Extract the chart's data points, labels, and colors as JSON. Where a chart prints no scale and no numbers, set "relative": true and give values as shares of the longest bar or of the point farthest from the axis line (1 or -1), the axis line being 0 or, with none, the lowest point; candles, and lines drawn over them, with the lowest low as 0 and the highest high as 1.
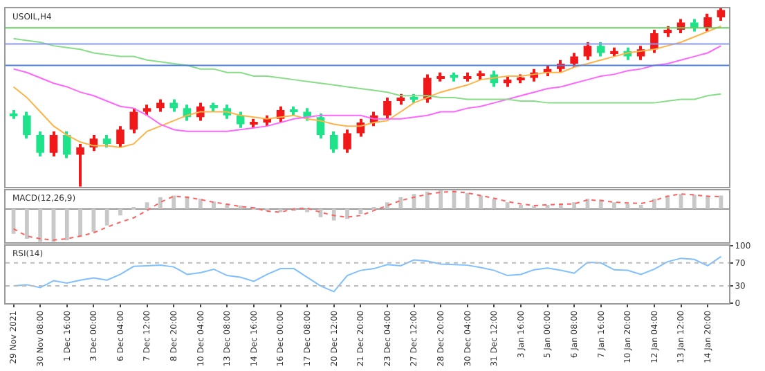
{
  "chart_data": [
    {
      "type": "candlestick",
      "title": "USOIL,H4",
      "relative": true,
      "categories": [
        null,
        null,
        null,
        null,
        null,
        null,
        null,
        null,
        null,
        null,
        null,
        null,
        null,
        null,
        null,
        null,
        null,
        null,
        null,
        null,
        null,
        null,
        null,
        null,
        null,
        null,
        null,
        null,
        null,
        null,
        null,
        null,
        null,
        null,
        null,
        null,
        null,
        null,
        null,
        null,
        null,
        null,
        null,
        null,
        null,
        null,
        null,
        null,
        null,
        null,
        null,
        null,
        null,
        null
      ],
      "colors": [
        "#1ee38a",
        "#1ee38a",
        "#1ee38a",
        "#f01818",
        "#1ee38a",
        "#f01818",
        "#f01818",
        "#1ee38a",
        "#f01818",
        "#f01818",
        "#f01818",
        "#f01818",
        "#1ee38a",
        "#1ee38a",
        "#f01818",
        "#1ee38a",
        "#1ee38a",
        "#1ee38a",
        "#f01818",
        "#f01818",
        "#f01818",
        "#1ee38a",
        "#1ee38a",
        "#1ee38a",
        "#1ee38a",
        "#f01818",
        "#f01818",
        "#f01818",
        "#f01818",
        "#f01818",
        "#1ee38a",
        "#f01818",
        "#f01818",
        "#1ee38a",
        "#f01818",
        "#f01818",
        "#1ee38a",
        "#f01818",
        "#f01818",
        "#f01818",
        "#f01818",
        "#f01818",
        "#f01818",
        "#f01818",
        "#1ee38a",
        "#f01818",
        "#1ee38a",
        "#f01818",
        "#f01818",
        "#f01818",
        "#f01818",
        "#1ee38a",
        "#f01818",
        "#f01818"
      ],
      "ohlc": [
        [
          0.41,
          0.43,
          0.38,
          0.4
        ],
        [
          0.4,
          0.42,
          0.27,
          0.29
        ],
        [
          0.29,
          0.31,
          0.17,
          0.19
        ],
        [
          0.19,
          0.31,
          0.17,
          0.29
        ],
        [
          0.29,
          0.31,
          0.16,
          0.18
        ],
        [
          0.18,
          0.24,
          0.0,
          0.22
        ],
        [
          0.22,
          0.29,
          0.2,
          0.27
        ],
        [
          0.27,
          0.29,
          0.22,
          0.24
        ],
        [
          0.24,
          0.34,
          0.22,
          0.32
        ],
        [
          0.32,
          0.44,
          0.3,
          0.42
        ],
        [
          0.42,
          0.46,
          0.4,
          0.44
        ],
        [
          0.44,
          0.49,
          0.42,
          0.47
        ],
        [
          0.47,
          0.49,
          0.42,
          0.44
        ],
        [
          0.44,
          0.46,
          0.37,
          0.39
        ],
        [
          0.39,
          0.47,
          0.37,
          0.45
        ],
        [
          0.45,
          0.47,
          0.42,
          0.44
        ],
        [
          0.44,
          0.46,
          0.38,
          0.4
        ],
        [
          0.4,
          0.42,
          0.33,
          0.35
        ],
        [
          0.35,
          0.38,
          0.33,
          0.36
        ],
        [
          0.36,
          0.4,
          0.34,
          0.38
        ],
        [
          0.38,
          0.45,
          0.36,
          0.43
        ],
        [
          0.43,
          0.45,
          0.4,
          0.42
        ],
        [
          0.42,
          0.44,
          0.37,
          0.39
        ],
        [
          0.39,
          0.41,
          0.27,
          0.29
        ],
        [
          0.29,
          0.31,
          0.19,
          0.21
        ],
        [
          0.21,
          0.32,
          0.19,
          0.3
        ],
        [
          0.3,
          0.38,
          0.28,
          0.36
        ],
        [
          0.36,
          0.42,
          0.34,
          0.4
        ],
        [
          0.4,
          0.5,
          0.38,
          0.48
        ],
        [
          0.48,
          0.52,
          0.46,
          0.5
        ],
        [
          0.5,
          0.52,
          0.47,
          0.49
        ],
        [
          0.49,
          0.63,
          0.47,
          0.61
        ],
        [
          0.61,
          0.64,
          0.59,
          0.62
        ],
        [
          0.62,
          0.64,
          0.59,
          0.61
        ],
        [
          0.61,
          0.64,
          0.59,
          0.62
        ],
        [
          0.62,
          0.65,
          0.6,
          0.63
        ],
        [
          0.63,
          0.65,
          0.56,
          0.58
        ],
        [
          0.58,
          0.62,
          0.56,
          0.6
        ],
        [
          0.6,
          0.63,
          0.58,
          0.61
        ],
        [
          0.61,
          0.66,
          0.59,
          0.64
        ],
        [
          0.64,
          0.68,
          0.62,
          0.66
        ],
        [
          0.66,
          0.71,
          0.64,
          0.69
        ],
        [
          0.69,
          0.75,
          0.67,
          0.73
        ],
        [
          0.73,
          0.81,
          0.71,
          0.79
        ],
        [
          0.79,
          0.81,
          0.73,
          0.75
        ],
        [
          0.75,
          0.78,
          0.73,
          0.76
        ],
        [
          0.76,
          0.78,
          0.71,
          0.73
        ],
        [
          0.73,
          0.79,
          0.71,
          0.77
        ],
        [
          0.77,
          0.88,
          0.75,
          0.86
        ],
        [
          0.86,
          0.9,
          0.84,
          0.88
        ],
        [
          0.88,
          0.94,
          0.86,
          0.92
        ],
        [
          0.92,
          0.94,
          0.87,
          0.89
        ],
        [
          0.89,
          0.97,
          0.87,
          0.95
        ],
        [
          0.95,
          1.0,
          0.93,
          0.99
        ]
      ],
      "series": [
        {
          "type": "line",
          "color": "#ffb347",
          "values": [
            0.56,
            0.5,
            0.42,
            0.34,
            0.29,
            0.25,
            0.23,
            0.23,
            0.22,
            0.24,
            0.31,
            0.34,
            0.37,
            0.4,
            0.42,
            0.42,
            0.42,
            0.4,
            0.39,
            0.38,
            0.39,
            0.4,
            0.38,
            0.37,
            0.35,
            0.34,
            0.34,
            0.36,
            0.37,
            0.42,
            0.47,
            0.5,
            0.53,
            0.55,
            0.57,
            0.6,
            0.61,
            0.62,
            0.62,
            0.63,
            0.64,
            0.64,
            0.67,
            0.69,
            0.71,
            0.73,
            0.75,
            0.76,
            0.77,
            0.79,
            0.81,
            0.84,
            0.87,
            0.9
          ]
        },
        {
          "type": "line",
          "color": "#ff66ff",
          "values": [
            0.66,
            0.64,
            0.61,
            0.58,
            0.56,
            0.53,
            0.51,
            0.48,
            0.45,
            0.44,
            0.4,
            0.35,
            0.32,
            0.31,
            0.31,
            0.31,
            0.31,
            0.32,
            0.33,
            0.34,
            0.36,
            0.38,
            0.39,
            0.4,
            0.4,
            0.4,
            0.4,
            0.38,
            0.38,
            0.38,
            0.39,
            0.4,
            0.42,
            0.42,
            0.44,
            0.45,
            0.47,
            0.49,
            0.51,
            0.53,
            0.55,
            0.56,
            0.58,
            0.6,
            0.62,
            0.63,
            0.65,
            0.66,
            0.68,
            0.69,
            0.71,
            0.73,
            0.75,
            0.79
          ]
        },
        {
          "type": "line",
          "color": "#88dd88",
          "values": [
            0.83,
            0.82,
            0.81,
            0.79,
            0.78,
            0.77,
            0.75,
            0.74,
            0.73,
            0.73,
            0.71,
            0.7,
            0.69,
            0.68,
            0.66,
            0.66,
            0.64,
            0.64,
            0.62,
            0.62,
            0.61,
            0.6,
            0.59,
            0.58,
            0.57,
            0.56,
            0.55,
            0.54,
            0.53,
            0.51,
            0.51,
            0.51,
            0.5,
            0.5,
            0.49,
            0.49,
            0.49,
            0.49,
            0.48,
            0.48,
            0.47,
            0.47,
            0.47,
            0.47,
            0.47,
            0.47,
            0.47,
            0.47,
            0.47,
            0.48,
            0.49,
            0.49,
            0.51,
            0.52
          ]
        }
      ],
      "ref_lines": [
        {
          "axis": "y",
          "value": 0.89,
          "color": "#66cc66"
        },
        {
          "axis": "y",
          "value": 0.8,
          "color": "#8899ee"
        },
        {
          "axis": "y",
          "value": 0.68,
          "color": "#4a7fe0"
        }
      ]
    },
    {
      "type": "bar",
      "title": "MACD(12,26,9)",
      "relative": true,
      "categories": [
        null,
        null,
        null,
        null,
        null,
        null,
        null,
        null,
        null,
        null,
        null,
        null,
        null,
        null,
        null,
        null,
        null,
        null,
        null,
        null,
        null,
        null,
        null,
        null,
        null,
        null,
        null,
        null,
        null,
        null,
        null,
        null,
        null,
        null,
        null,
        null,
        null,
        null,
        null,
        null,
        null,
        null,
        null,
        null,
        null,
        null,
        null,
        null,
        null,
        null,
        null,
        null,
        null,
        null
      ],
      "series": [
        {
          "type": "bar",
          "color": "#c8c8c8",
          "values": [
            -0.75,
            -0.9,
            -1,
            -1,
            -0.95,
            -0.85,
            -0.7,
            -0.5,
            -0.2,
            0.05,
            0.2,
            0.35,
            0.4,
            0.38,
            0.3,
            0.22,
            0.15,
            0.1,
            0.05,
            -0.05,
            -0.1,
            -0.05,
            -0.1,
            -0.25,
            -0.35,
            -0.3,
            -0.15,
            0.05,
            0.2,
            0.35,
            0.45,
            0.52,
            0.56,
            0.55,
            0.48,
            0.4,
            0.3,
            0.2,
            0.12,
            0.1,
            0.12,
            0.15,
            0.2,
            0.3,
            0.28,
            0.2,
            0.15,
            0.12,
            0.3,
            0.4,
            0.45,
            0.42,
            0.4,
            0.4
          ]
        },
        {
          "type": "line",
          "color": "#ff6060",
          "line_style": "dotted",
          "values": [
            -0.6,
            -0.82,
            -0.9,
            -0.94,
            -0.9,
            -0.82,
            -0.72,
            -0.55,
            -0.4,
            -0.27,
            -0.05,
            0.2,
            0.38,
            0.35,
            0.28,
            0.2,
            0.14,
            0.07,
            0.03,
            -0.07,
            -0.1,
            0,
            0.02,
            -0.1,
            -0.2,
            -0.25,
            -0.2,
            -0.05,
            0.1,
            0.25,
            0.35,
            0.44,
            0.5,
            0.52,
            0.48,
            0.4,
            0.32,
            0.22,
            0.15,
            0.1,
            0.12,
            0.14,
            0.15,
            0.27,
            0.25,
            0.2,
            0.18,
            0.16,
            0.25,
            0.38,
            0.45,
            0.42,
            0.38,
            0.37
          ]
        }
      ]
    },
    {
      "type": "line",
      "title": "RSI(14)",
      "ylim": [
        0,
        100
      ],
      "yticks": [
        0,
        30,
        70,
        100
      ],
      "categories": [
        "29 Nov 2021",
        null,
        "30 Nov 08:00",
        null,
        "1 Dec 16:00",
        null,
        "3 Dec 00:00",
        null,
        "6 Dec 04:00",
        null,
        "7 Dec 12:00",
        null,
        "8 Dec 20:00",
        null,
        "10 Dec 04:00",
        null,
        "13 Dec 08:00",
        null,
        "14 Dec 16:00",
        null,
        "16 Dec 00:00",
        null,
        "17 Dec 08:00",
        null,
        "20 Dec 12:00",
        null,
        "21 Dec 20:00",
        null,
        "23 Dec 04:00",
        null,
        "27 Dec 12:00",
        null,
        "28 Dec 20:00",
        null,
        "30 Dec 04:00",
        null,
        "31 Dec 12:00",
        null,
        "3 Jan 16:00",
        null,
        "5 Jan 00:00",
        null,
        "6 Jan 08:00",
        null,
        "7 Jan 16:00",
        null,
        "10 Jan 20:00",
        null,
        "12 Jan 04:00",
        null,
        "13 Jan 12:00",
        null,
        "14 Jan 20:00",
        null
      ],
      "series": [
        {
          "color": "#7fbfff",
          "values": [
            30,
            32,
            27,
            39,
            35,
            40,
            44,
            40,
            50,
            64,
            65,
            66,
            63,
            50,
            53,
            59,
            48,
            45,
            38,
            50,
            60,
            60,
            45,
            30,
            20,
            48,
            57,
            60,
            67,
            65,
            75,
            73,
            68,
            67,
            66,
            62,
            57,
            48,
            50,
            58,
            61,
            57,
            52,
            71,
            70,
            58,
            57,
            50,
            59,
            72,
            78,
            76,
            65,
            81
          ]
        }
      ],
      "ref_lines": [
        {
          "axis": "y",
          "value": 70,
          "color": "#bbbbbb",
          "line_style": "dotted"
        },
        {
          "axis": "y",
          "value": 30,
          "color": "#bbbbbb",
          "line_style": "dotted"
        }
      ]
    }
  ]
}
